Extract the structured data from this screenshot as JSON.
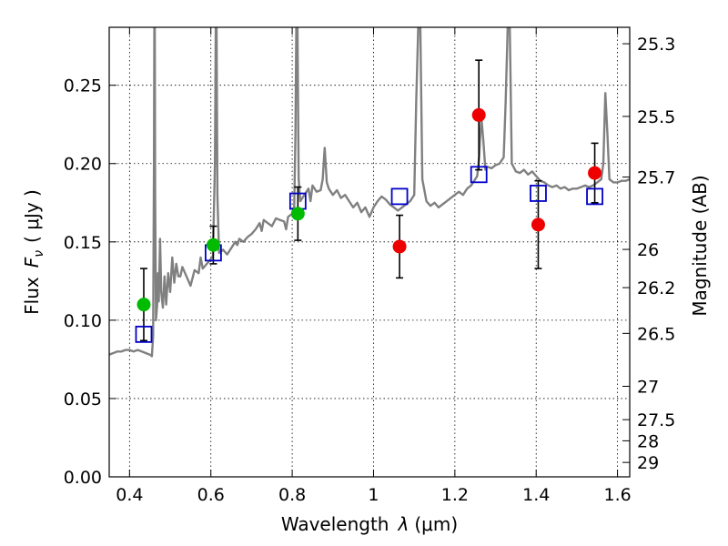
{
  "chart_data": {
    "type": "scatter",
    "xlabel_prefix": "Wavelength",
    "xlabel_symbol": "λ",
    "xlabel_unit": "(μm)",
    "ylabel_prefix": "Flux",
    "ylabel_symbol": "F",
    "ylabel_sub": "ν",
    "ylabel_unit": "( μJy )",
    "ylabel_right": "Magnitude (AB)",
    "xlim": [
      0.35,
      1.63
    ],
    "ylim": [
      0.0,
      0.287
    ],
    "grid": true,
    "x_ticks": [
      0.4,
      0.6,
      0.8,
      1.0,
      1.2,
      1.4,
      1.6
    ],
    "x_tick_labels": [
      "0.4",
      "0.6",
      "0.8",
      "1",
      "1.2",
      "1.4",
      "1.6"
    ],
    "y_ticks": [
      0.0,
      0.05,
      0.1,
      0.15,
      0.2,
      0.25
    ],
    "y_tick_labels": [
      "0.00",
      "0.05",
      "0.10",
      "0.15",
      "0.20",
      "0.25"
    ],
    "right_ticks": [
      {
        "label": "25.3",
        "flux": 0.2765
      },
      {
        "label": "25.5",
        "flux": 0.2301
      },
      {
        "label": "25.7",
        "flux": 0.1914
      },
      {
        "label": "26",
        "flux": 0.1452
      },
      {
        "label": "26.2",
        "flux": 0.1208
      },
      {
        "label": "26.5",
        "flux": 0.0916
      },
      {
        "label": "27",
        "flux": 0.0578
      },
      {
        "label": "27.5",
        "flux": 0.0365
      },
      {
        "label": "28",
        "flux": 0.023
      },
      {
        "label": "29",
        "flux": 0.0092
      }
    ],
    "observed_optical": {
      "color": "#00bb00",
      "points": [
        {
          "x": 0.435,
          "y": 0.11,
          "err": 0.023
        },
        {
          "x": 0.606,
          "y": 0.148,
          "err": 0.012
        },
        {
          "x": 0.814,
          "y": 0.168,
          "err": 0.017
        }
      ]
    },
    "observed_nir": {
      "color": "#ee0000",
      "points": [
        {
          "x": 1.064,
          "y": 0.147,
          "err": 0.02
        },
        {
          "x": 1.259,
          "y": 0.231,
          "err": 0.035
        },
        {
          "x": 1.405,
          "y": 0.161,
          "err": 0.028
        },
        {
          "x": 1.544,
          "y": 0.194,
          "err": 0.019
        }
      ]
    },
    "model_photometry": {
      "color": "#0000c8",
      "points": [
        {
          "x": 0.435,
          "y": 0.091
        },
        {
          "x": 0.606,
          "y": 0.143
        },
        {
          "x": 0.814,
          "y": 0.176
        },
        {
          "x": 1.064,
          "y": 0.179
        },
        {
          "x": 1.259,
          "y": 0.193
        },
        {
          "x": 1.405,
          "y": 0.181
        },
        {
          "x": 1.544,
          "y": 0.179
        }
      ]
    },
    "sed_color": "#808080",
    "sed": [
      [
        0.35,
        0.078
      ],
      [
        0.36,
        0.079
      ],
      [
        0.37,
        0.08
      ],
      [
        0.38,
        0.08
      ],
      [
        0.39,
        0.081
      ],
      [
        0.4,
        0.081
      ],
      [
        0.41,
        0.08
      ],
      [
        0.42,
        0.081
      ],
      [
        0.43,
        0.08
      ],
      [
        0.44,
        0.079
      ],
      [
        0.45,
        0.078
      ],
      [
        0.455,
        0.077
      ],
      [
        0.458,
        0.09
      ],
      [
        0.46,
        0.2
      ],
      [
        0.461,
        0.287
      ],
      [
        0.462,
        0.287
      ],
      [
        0.463,
        0.18
      ],
      [
        0.465,
        0.1
      ],
      [
        0.468,
        0.11
      ],
      [
        0.47,
        0.13
      ],
      [
        0.472,
        0.112
      ],
      [
        0.475,
        0.152
      ],
      [
        0.478,
        0.118
      ],
      [
        0.482,
        0.108
      ],
      [
        0.486,
        0.128
      ],
      [
        0.49,
        0.11
      ],
      [
        0.495,
        0.13
      ],
      [
        0.5,
        0.118
      ],
      [
        0.505,
        0.14
      ],
      [
        0.51,
        0.124
      ],
      [
        0.515,
        0.136
      ],
      [
        0.52,
        0.128
      ],
      [
        0.525,
        0.128
      ],
      [
        0.53,
        0.134
      ],
      [
        0.54,
        0.128
      ],
      [
        0.55,
        0.122
      ],
      [
        0.56,
        0.132
      ],
      [
        0.57,
        0.13
      ],
      [
        0.575,
        0.14
      ],
      [
        0.58,
        0.133
      ],
      [
        0.59,
        0.136
      ],
      [
        0.6,
        0.139
      ],
      [
        0.605,
        0.141
      ],
      [
        0.61,
        0.2
      ],
      [
        0.612,
        0.287
      ],
      [
        0.614,
        0.287
      ],
      [
        0.616,
        0.18
      ],
      [
        0.62,
        0.143
      ],
      [
        0.63,
        0.145
      ],
      [
        0.64,
        0.142
      ],
      [
        0.65,
        0.146
      ],
      [
        0.66,
        0.15
      ],
      [
        0.665,
        0.148
      ],
      [
        0.67,
        0.152
      ],
      [
        0.68,
        0.15
      ],
      [
        0.69,
        0.153
      ],
      [
        0.7,
        0.155
      ],
      [
        0.71,
        0.158
      ],
      [
        0.72,
        0.162
      ],
      [
        0.725,
        0.157
      ],
      [
        0.73,
        0.164
      ],
      [
        0.74,
        0.162
      ],
      [
        0.75,
        0.16
      ],
      [
        0.76,
        0.165
      ],
      [
        0.77,
        0.164
      ],
      [
        0.78,
        0.163
      ],
      [
        0.785,
        0.158
      ],
      [
        0.79,
        0.166
      ],
      [
        0.8,
        0.168
      ],
      [
        0.805,
        0.172
      ],
      [
        0.808,
        0.22
      ],
      [
        0.81,
        0.287
      ],
      [
        0.813,
        0.287
      ],
      [
        0.816,
        0.19
      ],
      [
        0.82,
        0.176
      ],
      [
        0.83,
        0.18
      ],
      [
        0.84,
        0.184
      ],
      [
        0.845,
        0.176
      ],
      [
        0.85,
        0.186
      ],
      [
        0.86,
        0.182
      ],
      [
        0.87,
        0.183
      ],
      [
        0.875,
        0.19
      ],
      [
        0.88,
        0.21
      ],
      [
        0.885,
        0.188
      ],
      [
        0.89,
        0.184
      ],
      [
        0.9,
        0.18
      ],
      [
        0.91,
        0.183
      ],
      [
        0.92,
        0.178
      ],
      [
        0.93,
        0.18
      ],
      [
        0.94,
        0.176
      ],
      [
        0.95,
        0.172
      ],
      [
        0.96,
        0.175
      ],
      [
        0.97,
        0.169
      ],
      [
        0.98,
        0.172
      ],
      [
        0.99,
        0.166
      ],
      [
        1.0,
        0.172
      ],
      [
        1.01,
        0.176
      ],
      [
        1.02,
        0.179
      ],
      [
        1.03,
        0.177
      ],
      [
        1.04,
        0.174
      ],
      [
        1.05,
        0.172
      ],
      [
        1.06,
        0.17
      ],
      [
        1.07,
        0.172
      ],
      [
        1.08,
        0.174
      ],
      [
        1.09,
        0.176
      ],
      [
        1.1,
        0.18
      ],
      [
        1.105,
        0.24
      ],
      [
        1.11,
        0.287
      ],
      [
        1.115,
        0.287
      ],
      [
        1.12,
        0.19
      ],
      [
        1.13,
        0.176
      ],
      [
        1.14,
        0.173
      ],
      [
        1.15,
        0.175
      ],
      [
        1.16,
        0.172
      ],
      [
        1.17,
        0.174
      ],
      [
        1.18,
        0.176
      ],
      [
        1.19,
        0.178
      ],
      [
        1.2,
        0.18
      ],
      [
        1.21,
        0.182
      ],
      [
        1.22,
        0.18
      ],
      [
        1.23,
        0.184
      ],
      [
        1.24,
        0.186
      ],
      [
        1.25,
        0.19
      ],
      [
        1.255,
        0.192
      ],
      [
        1.26,
        0.205
      ],
      [
        1.265,
        0.23
      ],
      [
        1.27,
        0.215
      ],
      [
        1.275,
        0.196
      ],
      [
        1.28,
        0.198
      ],
      [
        1.29,
        0.197
      ],
      [
        1.3,
        0.199
      ],
      [
        1.31,
        0.2
      ],
      [
        1.32,
        0.204
      ],
      [
        1.325,
        0.24
      ],
      [
        1.33,
        0.287
      ],
      [
        1.335,
        0.287
      ],
      [
        1.34,
        0.2
      ],
      [
        1.35,
        0.195
      ],
      [
        1.36,
        0.194
      ],
      [
        1.37,
        0.196
      ],
      [
        1.38,
        0.193
      ],
      [
        1.39,
        0.195
      ],
      [
        1.4,
        0.192
      ],
      [
        1.41,
        0.189
      ],
      [
        1.42,
        0.188
      ],
      [
        1.43,
        0.186
      ],
      [
        1.44,
        0.185
      ],
      [
        1.45,
        0.186
      ],
      [
        1.46,
        0.184
      ],
      [
        1.47,
        0.185
      ],
      [
        1.48,
        0.183
      ],
      [
        1.49,
        0.184
      ],
      [
        1.5,
        0.184
      ],
      [
        1.51,
        0.185
      ],
      [
        1.52,
        0.186
      ],
      [
        1.53,
        0.185
      ],
      [
        1.54,
        0.186
      ],
      [
        1.55,
        0.188
      ],
      [
        1.56,
        0.19
      ],
      [
        1.565,
        0.2
      ],
      [
        1.57,
        0.245
      ],
      [
        1.575,
        0.22
      ],
      [
        1.58,
        0.19
      ],
      [
        1.59,
        0.188
      ],
      [
        1.6,
        0.188
      ],
      [
        1.61,
        0.189
      ],
      [
        1.62,
        0.189
      ],
      [
        1.63,
        0.19
      ]
    ]
  }
}
